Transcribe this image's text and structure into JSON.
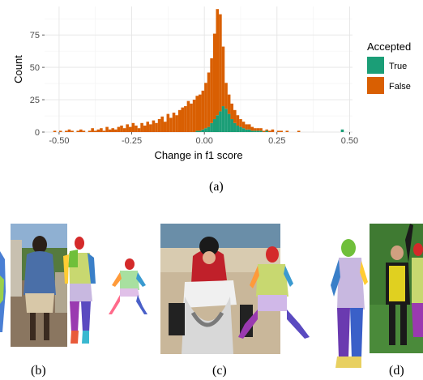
{
  "chart_data": {
    "type": "bar",
    "subtype": "stacked-histogram",
    "xlabel": "Change in f1 score",
    "ylabel": "Count",
    "xlim": [
      -0.55,
      0.51
    ],
    "ylim": [
      0,
      97
    ],
    "x_ticks": [
      "-0.50",
      "-0.25",
      "0.00",
      "0.25",
      "0.50"
    ],
    "x_tick_values": [
      -0.5,
      -0.25,
      0,
      0.25,
      0.5
    ],
    "y_ticks": [
      "0",
      "25",
      "50",
      "75"
    ],
    "y_tick_values": [
      0,
      25,
      50,
      75
    ],
    "grid": true,
    "legend_title": "Accepted",
    "legend_position": "right",
    "bin_width": 0.01,
    "bin_start": -0.52,
    "series": [
      {
        "name": "True",
        "color": "#1b9e77",
        "values": [
          0,
          0,
          0,
          0,
          0,
          0,
          0,
          0,
          0,
          0,
          0,
          0,
          0,
          0,
          0,
          0,
          0,
          0,
          0,
          0,
          0,
          0,
          0,
          0,
          0,
          0,
          0,
          0,
          0,
          0,
          0,
          0,
          0,
          0,
          0,
          0,
          0,
          0,
          0,
          0,
          0,
          0,
          0,
          0,
          0,
          0,
          0,
          0,
          0,
          1,
          1,
          2,
          3,
          4,
          7,
          10,
          13,
          16,
          20,
          18,
          14,
          10,
          7,
          5,
          4,
          3,
          2,
          2,
          1,
          1,
          1,
          1,
          0,
          1,
          0,
          0,
          0,
          0,
          0,
          0,
          0,
          0,
          0,
          0,
          0,
          0,
          0,
          0,
          0,
          0,
          0,
          0,
          0,
          0,
          0,
          0,
          0,
          0,
          0,
          2
        ]
      },
      {
        "name": "False",
        "color": "#d95f02",
        "values": [
          1,
          0,
          1,
          0,
          1,
          2,
          1,
          0,
          1,
          2,
          1,
          0,
          1,
          3,
          1,
          2,
          3,
          1,
          4,
          2,
          3,
          2,
          4,
          5,
          3,
          6,
          4,
          7,
          5,
          3,
          7,
          5,
          8,
          6,
          9,
          7,
          10,
          12,
          8,
          14,
          11,
          15,
          13,
          17,
          19,
          20,
          24,
          22,
          25,
          27,
          28,
          30,
          35,
          42,
          50,
          66,
          82,
          75,
          46,
          20,
          15,
          12,
          10,
          8,
          6,
          5,
          4,
          4,
          3,
          2,
          2,
          2,
          1,
          1,
          1,
          2,
          0,
          1,
          1,
          0,
          1,
          0,
          0,
          0,
          1,
          0,
          0,
          0,
          0,
          0,
          0,
          0,
          0,
          0,
          0,
          0,
          0,
          0,
          0,
          0
        ]
      }
    ]
  },
  "captions": {
    "a": "(a)",
    "b": "(b)",
    "c": "(c)",
    "d": "(d)"
  }
}
